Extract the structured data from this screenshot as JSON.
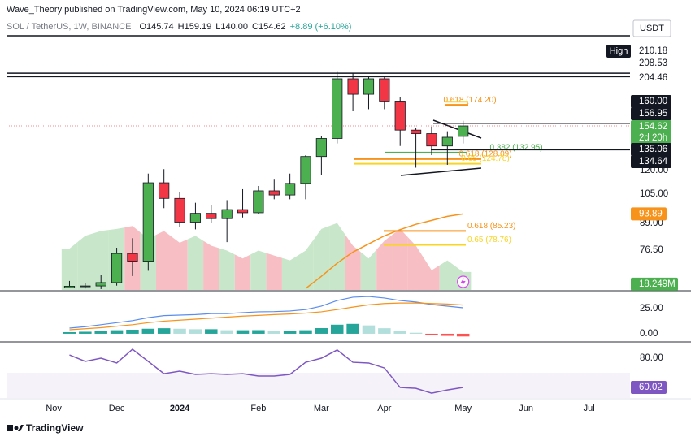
{
  "header": {
    "publisher": "Wave_Theory published on TradingView.com, May 10, 2024 06:19 UTC+2",
    "symbol": "SOL / TetherUS, 1W, BINANCE",
    "ohlc": [
      "O145.74",
      "H159.19",
      "L140.00",
      "C154.62",
      "+8.89 (+6.10%)"
    ],
    "currency": "USDT",
    "footer": "TradingView"
  },
  "chart_data": [
    {
      "type": "candlestick",
      "log_scale": true,
      "ylim": [
        61,
        275
      ],
      "xlim": [
        -4,
        35.6
      ],
      "up_color": "#4caf50",
      "down_color": "#f23645",
      "xticks": [
        {
          "value": -1,
          "label": "Nov"
        },
        {
          "value": 3,
          "label": "Dec"
        },
        {
          "value": 7,
          "label": "2024"
        },
        {
          "value": 12,
          "label": "Feb"
        },
        {
          "value": 16,
          "label": "Mar"
        },
        {
          "value": 20,
          "label": "Apr"
        },
        {
          "value": 25,
          "label": "May"
        },
        {
          "value": 29,
          "label": "Jun"
        },
        {
          "value": 33,
          "label": "Jul"
        }
      ],
      "yticks": [
        {
          "value": 120,
          "label": "120.00"
        },
        {
          "value": 105,
          "label": "105.00"
        },
        {
          "value": 89,
          "label": "89.00"
        },
        {
          "value": 76.5,
          "label": "76.50"
        }
      ],
      "open": [
        61.8,
        62.3,
        62.4,
        63.6,
        75,
        71.8,
        112,
        102.5,
        89.6,
        94.2,
        91.4,
        96.2,
        94.5,
        107,
        104.5,
        111.6,
        130,
        144,
        202,
        185,
        202,
        178,
        151,
        148,
        138,
        145.74
      ],
      "high": [
        64.2,
        63.3,
        66.5,
        77.5,
        81.8,
        118,
        121,
        106,
        100,
        98.5,
        101.5,
        108,
        110,
        114,
        118,
        131,
        146,
        210,
        209,
        204,
        204,
        182,
        153,
        154,
        150,
        159.19
      ],
      "low": [
        61.6,
        61.5,
        61.3,
        62.5,
        66,
        68,
        97,
        87,
        86,
        89,
        80,
        92,
        94,
        102,
        102,
        102,
        117,
        140,
        168,
        170,
        170,
        138,
        122,
        131,
        124,
        140
      ],
      "close": [
        62.3,
        62.4,
        63.6,
        75,
        71.8,
        112,
        102.5,
        89.6,
        94.2,
        91.4,
        96.2,
        94.5,
        107,
        104.5,
        111.6,
        130,
        144,
        202,
        185,
        202,
        178,
        151,
        148,
        138,
        145,
        154.62
      ],
      "volume": {
        "values": [
          42,
          55,
          60,
          62,
          65,
          52,
          60,
          48,
          55,
          45,
          40,
          32,
          40,
          35,
          30,
          40,
          62,
          68,
          45,
          32,
          50,
          62,
          45,
          20,
          30,
          18.249
        ],
        "ylim": [
          0,
          270
        ],
        "label": "18.249M",
        "up_color": "#c8e6c9",
        "down_color": "#f7bfc3",
        "tag_color": "#4caf50"
      },
      "moving_average": {
        "color": "#f7931a",
        "values": [
          null,
          null,
          null,
          null,
          null,
          null,
          null,
          null,
          null,
          null,
          null,
          null,
          null,
          null,
          null,
          61.5,
          65.9,
          71,
          75.6,
          79.2,
          82.9,
          85.9,
          88.5,
          90.5,
          92.6,
          93.89
        ],
        "label": "93.89"
      },
      "price_labels": [
        {
          "value": 210.18,
          "label": "210.18",
          "tag": "High"
        },
        {
          "value": 208.53,
          "label": "208.53"
        },
        {
          "value": 204.46,
          "label": "204.46"
        },
        {
          "value": 160,
          "label": "160.00",
          "color": "#131722"
        },
        {
          "value": 156.95,
          "label": "156.95",
          "color": "#131722"
        },
        {
          "value": 154.62,
          "label": "154.62",
          "color": "#4caf50",
          "countdown": "2d 20h"
        },
        {
          "value": 135.06,
          "label": "135.06",
          "color": "#131722"
        },
        {
          "value": 134.64,
          "label": "134.64",
          "color": "#131722"
        }
      ],
      "fib_levels": [
        {
          "value": 174.2,
          "label": "0.618 (174.20)",
          "color": "#f7931a"
        },
        {
          "value": 177.4,
          "color": "#f9d423"
        },
        {
          "value": 132.95,
          "label": "0.382 (132.95)",
          "color": "#4caf50"
        },
        {
          "value": 128.09,
          "label": "0.618 (128.09)",
          "color": "#f7931a"
        },
        {
          "value": 124.78,
          "label": "0.65 (124.78)",
          "color": "#f9d423"
        },
        {
          "value": 85.23,
          "label": "0.618 (85.23)",
          "color": "#f7931a"
        },
        {
          "value": 78.76,
          "label": "0.65 (78.76)",
          "color": "#f9d423"
        }
      ]
    },
    {
      "type": "macd",
      "ylim": [
        -7.3,
        41.1
      ],
      "yticks": [
        {
          "value": 25,
          "label": "25.00"
        },
        {
          "value": 0,
          "label": "0.00"
        }
      ],
      "series": [
        {
          "name": "MACD",
          "color": "#5b8def",
          "values": [
            5.6,
            7,
            9,
            11,
            13,
            16,
            18,
            18.5,
            19,
            20,
            20,
            21,
            21.8,
            22,
            22.6,
            24,
            27.4,
            33,
            36.3,
            37,
            35.5,
            33,
            31.5,
            29,
            27.4,
            25.8
          ]
        },
        {
          "name": "Signal",
          "color": "#f7931a",
          "values": [
            4,
            5,
            6,
            7.5,
            9,
            11,
            12.5,
            13.5,
            14.5,
            15.5,
            16.5,
            17.5,
            18.2,
            19,
            19.6,
            20.5,
            21.8,
            24,
            26.5,
            28.7,
            30,
            30.5,
            30.5,
            30,
            29.5,
            28.5
          ]
        }
      ],
      "histogram": [
        1.6,
        2,
        3,
        3.5,
        4,
        5,
        5.5,
        5,
        4.5,
        4.5,
        3.5,
        3.5,
        3.6,
        3,
        3,
        3.5,
        5.6,
        9,
        9.8,
        8.3,
        5.5,
        2.5,
        1,
        -1,
        -2.1,
        -2.7
      ]
    },
    {
      "type": "rsi",
      "ylim": [
        52.8,
        88.9
      ],
      "band": [
        30,
        70
      ],
      "color": "#7e57c2",
      "yticks": [
        {
          "value": 80,
          "label": "80.00"
        }
      ],
      "values": [
        82.2,
        77.8,
        80,
        76.7,
        86.1,
        77.8,
        69.4,
        71.1,
        68.9,
        69.4,
        68.9,
        69.4,
        67.8,
        67.8,
        68.9,
        77.2,
        80,
        85.6,
        77.2,
        76.7,
        73.3,
        60,
        59.4,
        56.1,
        58.3,
        60.02
      ],
      "label": "60.02"
    }
  ]
}
